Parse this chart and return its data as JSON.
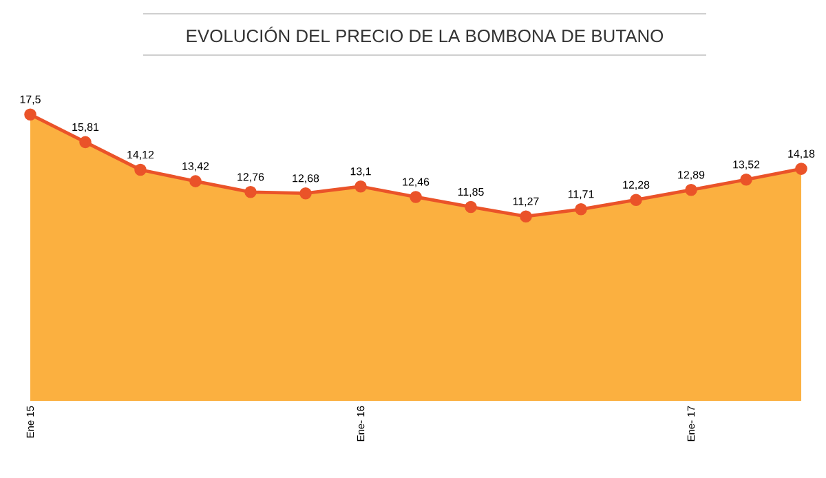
{
  "chart_data": {
    "type": "area",
    "title": "EVOLUCIÓN DEL PRECIO DE LA BOMBONA DE BUTANO",
    "categories": [
      "Ene 15",
      null,
      null,
      null,
      null,
      null,
      "Ene- 16",
      null,
      null,
      null,
      null,
      null,
      "Ene- 17",
      null,
      null
    ],
    "series": [
      {
        "color": "#fbb040",
        "marker": "circle",
        "values": [
          17.5,
          15.81,
          14.12,
          13.42,
          12.76,
          12.68,
          13.1,
          12.46,
          11.85,
          11.27,
          11.71,
          12.28,
          12.89,
          13.52,
          14.18
        ],
        "value_labels": [
          "17,5",
          "15,81",
          "14,12",
          "13,42",
          "12,76",
          "12,68",
          "13,1",
          "12,46",
          "11,85",
          "11,27",
          "11,71",
          "12,28",
          "12,89",
          "13,52",
          "14,18"
        ]
      }
    ],
    "tick_labels": "x"
  }
}
